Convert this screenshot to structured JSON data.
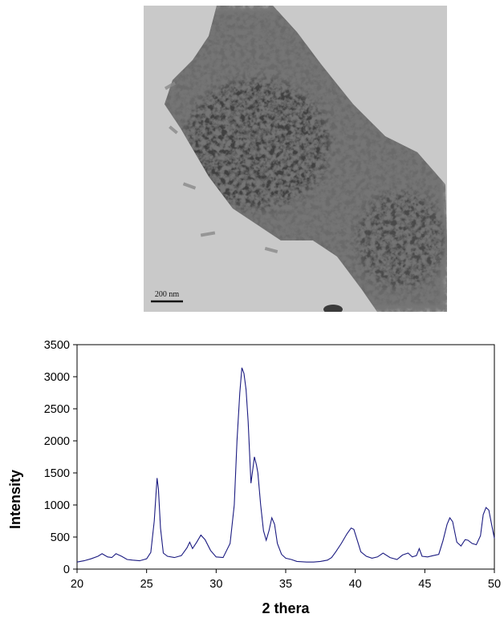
{
  "micrograph": {
    "scale_bar_label": "200 nm"
  },
  "chart_data": {
    "type": "line",
    "title": "",
    "xlabel": "2 thera",
    "ylabel": "Intensity",
    "xlim": [
      20,
      50
    ],
    "ylim": [
      0,
      3500
    ],
    "xticks": [
      20,
      25,
      30,
      35,
      40,
      45,
      50
    ],
    "yticks": [
      0,
      500,
      1000,
      1500,
      2000,
      2500,
      3000,
      3500
    ],
    "grid": false,
    "legend": "none",
    "line_color": "#1a1a80",
    "series": [
      {
        "x": [
          20.0,
          20.5,
          21.0,
          21.5,
          21.8,
          22.2,
          22.5,
          22.8,
          23.2,
          23.6,
          24.0,
          24.5,
          25.0,
          25.3,
          25.55,
          25.75,
          25.85,
          26.0,
          26.2,
          26.5,
          27.0,
          27.5,
          27.9,
          28.1,
          28.3,
          28.6,
          28.9,
          29.2,
          29.6,
          30.0,
          30.5,
          31.0,
          31.3,
          31.5,
          31.7,
          31.85,
          32.0,
          32.15,
          32.3,
          32.5,
          32.6,
          32.75,
          32.9,
          33.0,
          33.2,
          33.4,
          33.6,
          33.8,
          34.0,
          34.2,
          34.4,
          34.7,
          35.0,
          35.4,
          35.8,
          36.5,
          37.0,
          37.5,
          38.0,
          38.3,
          38.6,
          39.0,
          39.4,
          39.7,
          39.9,
          40.1,
          40.4,
          40.8,
          41.2,
          41.6,
          42.0,
          42.5,
          43.0,
          43.4,
          43.8,
          44.1,
          44.4,
          44.6,
          44.8,
          45.2,
          45.6,
          46.0,
          46.3,
          46.6,
          46.8,
          47.0,
          47.3,
          47.6,
          47.9,
          48.1,
          48.4,
          48.7,
          49.0,
          49.2,
          49.4,
          49.6,
          49.8,
          50.0
        ],
        "y": [
          110,
          130,
          160,
          200,
          240,
          190,
          180,
          240,
          200,
          150,
          140,
          130,
          160,
          260,
          750,
          1420,
          1250,
          640,
          250,
          200,
          180,
          210,
          330,
          420,
          320,
          420,
          530,
          460,
          290,
          190,
          180,
          400,
          1000,
          2000,
          2750,
          3140,
          3050,
          2800,
          2300,
          1340,
          1500,
          1750,
          1620,
          1500,
          1000,
          600,
          450,
          600,
          800,
          700,
          400,
          230,
          170,
          150,
          120,
          110,
          110,
          120,
          140,
          180,
          270,
          400,
          550,
          640,
          620,
          480,
          270,
          200,
          170,
          190,
          250,
          180,
          150,
          220,
          250,
          190,
          210,
          320,
          200,
          190,
          210,
          230,
          440,
          700,
          800,
          740,
          420,
          360,
          460,
          450,
          400,
          380,
          520,
          850,
          960,
          920,
          700,
          480
        ]
      }
    ]
  }
}
